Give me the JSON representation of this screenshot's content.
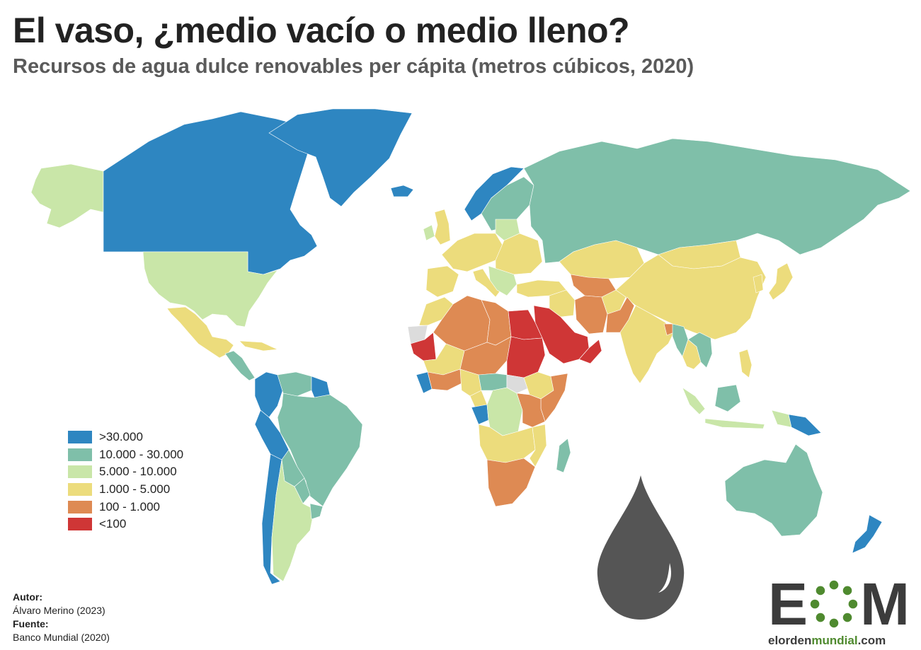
{
  "header": {
    "title": "El vaso, ¿medio vacío o medio lleno?",
    "subtitle": "Recursos de agua dulce renovables per cápita (metros cúbicos, 2020)"
  },
  "legend": {
    "items": [
      {
        "label": ">30.000",
        "color": "#2e86c1"
      },
      {
        "label": "10.000 - 30.000",
        "color": "#7fbfa9"
      },
      {
        "label": "5.000 - 10.000",
        "color": "#c9e6a8"
      },
      {
        "label": "1.000 - 5.000",
        "color": "#ecdc7c"
      },
      {
        "label": "100 - 1.000",
        "color": "#de8a53"
      },
      {
        "label": "<100",
        "color": "#cf3636"
      }
    ]
  },
  "no_data_color": "#dcdcdc",
  "credits": {
    "author_label": "Autor:",
    "author": "Álvaro Merino (2023)",
    "source_label": "Fuente:",
    "source": "Banco Mundial (2020)"
  },
  "logo": {
    "letter_e": "E",
    "letter_m": "M",
    "url_part1": "elorden",
    "url_part2": "mundial",
    "url_part3": ".com",
    "brand_color": "#4f8a2f"
  },
  "map": {
    "regions": [
      {
        "name": "alaska",
        "cls": 2
      },
      {
        "name": "canada",
        "cls": 0
      },
      {
        "name": "greenland",
        "cls": 0
      },
      {
        "name": "iceland",
        "cls": 0
      },
      {
        "name": "usa",
        "cls": 2
      },
      {
        "name": "mexico",
        "cls": 3
      },
      {
        "name": "central-america",
        "cls": 1
      },
      {
        "name": "cuba",
        "cls": 3
      },
      {
        "name": "colombia-ecuador",
        "cls": 0
      },
      {
        "name": "venezuela",
        "cls": 1
      },
      {
        "name": "guianas",
        "cls": 0
      },
      {
        "name": "brazil",
        "cls": 1
      },
      {
        "name": "peru",
        "cls": 0
      },
      {
        "name": "bolivia",
        "cls": 1
      },
      {
        "name": "paraguay",
        "cls": 1
      },
      {
        "name": "chile",
        "cls": 0
      },
      {
        "name": "argentina",
        "cls": 2
      },
      {
        "name": "uruguay",
        "cls": 1
      },
      {
        "name": "norway",
        "cls": 0
      },
      {
        "name": "sweden-finland",
        "cls": 1
      },
      {
        "name": "western-europe",
        "cls": 3
      },
      {
        "name": "eastern-europe",
        "cls": 3
      },
      {
        "name": "baltics",
        "cls": 2
      },
      {
        "name": "uk",
        "cls": 3
      },
      {
        "name": "ireland",
        "cls": 2
      },
      {
        "name": "iberia",
        "cls": 3
      },
      {
        "name": "italy",
        "cls": 3
      },
      {
        "name": "balkans",
        "cls": 2
      },
      {
        "name": "russia",
        "cls": 1
      },
      {
        "name": "kazakhstan",
        "cls": 3
      },
      {
        "name": "central-asia",
        "cls": 4
      },
      {
        "name": "mongolia",
        "cls": 3
      },
      {
        "name": "china",
        "cls": 3
      },
      {
        "name": "turkey",
        "cls": 3
      },
      {
        "name": "iran",
        "cls": 4
      },
      {
        "name": "iraq-syria",
        "cls": 3
      },
      {
        "name": "arabia",
        "cls": 5
      },
      {
        "name": "yemen-oman",
        "cls": 5
      },
      {
        "name": "afghanistan",
        "cls": 3
      },
      {
        "name": "pakistan",
        "cls": 4
      },
      {
        "name": "india",
        "cls": 3
      },
      {
        "name": "bangladesh",
        "cls": 4
      },
      {
        "name": "myanmar",
        "cls": 1
      },
      {
        "name": "indochina",
        "cls": 1
      },
      {
        "name": "thailand",
        "cls": 3
      },
      {
        "name": "korea",
        "cls": 3
      },
      {
        "name": "japan",
        "cls": 3
      },
      {
        "name": "philippines",
        "cls": 3
      },
      {
        "name": "sumatra",
        "cls": 2
      },
      {
        "name": "borneo",
        "cls": 1
      },
      {
        "name": "indonesia-east",
        "cls": 2
      },
      {
        "name": "new-guinea-west",
        "cls": 2
      },
      {
        "name": "papua-new-guinea",
        "cls": 0
      },
      {
        "name": "australia",
        "cls": 1
      },
      {
        "name": "new-zealand",
        "cls": 0
      },
      {
        "name": "morocco",
        "cls": 3
      },
      {
        "name": "western-sahara",
        "cls": 6
      },
      {
        "name": "mauritania",
        "cls": 5
      },
      {
        "name": "algeria",
        "cls": 4
      },
      {
        "name": "libya",
        "cls": 4
      },
      {
        "name": "egypt",
        "cls": 5
      },
      {
        "name": "mali",
        "cls": 3
      },
      {
        "name": "niger-chad",
        "cls": 4
      },
      {
        "name": "sudan",
        "cls": 5
      },
      {
        "name": "west-africa-coast",
        "cls": 4
      },
      {
        "name": "sierra-leone-liberia",
        "cls": 0
      },
      {
        "name": "nigeria",
        "cls": 3
      },
      {
        "name": "central-african-rep",
        "cls": 1
      },
      {
        "name": "south-sudan",
        "cls": 6
      },
      {
        "name": "ethiopia",
        "cls": 3
      },
      {
        "name": "somalia",
        "cls": 4
      },
      {
        "name": "cameroon",
        "cls": 3
      },
      {
        "name": "gabon-congo",
        "cls": 0
      },
      {
        "name": "drc",
        "cls": 2
      },
      {
        "name": "east-africa",
        "cls": 4
      },
      {
        "name": "angola-zambia",
        "cls": 3
      },
      {
        "name": "mozambique",
        "cls": 3
      },
      {
        "name": "southern-africa",
        "cls": 4
      },
      {
        "name": "madagascar",
        "cls": 1
      }
    ]
  }
}
